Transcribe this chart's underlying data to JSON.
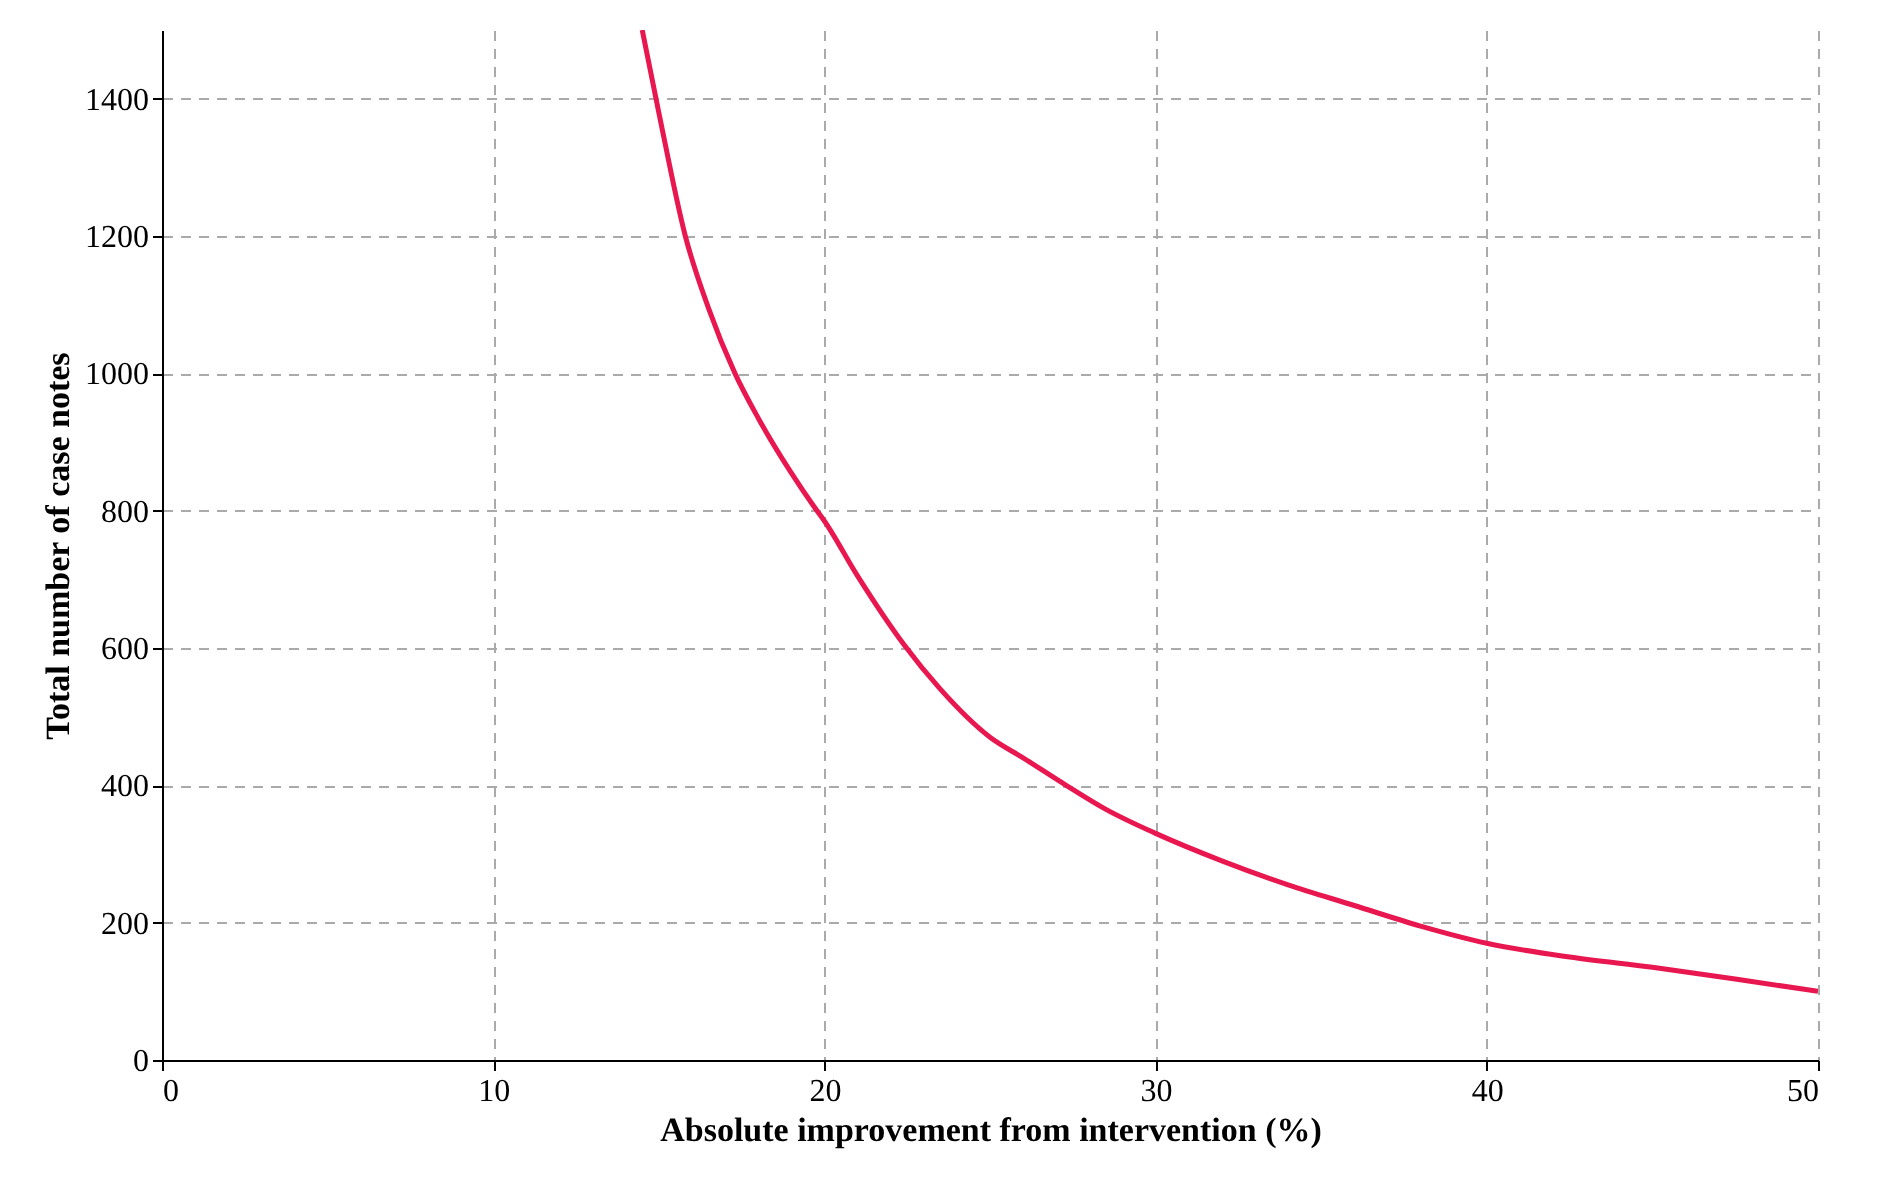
{
  "chart_data": {
    "type": "line",
    "xlabel": "Absolute improvement from intervention (%)",
    "ylabel": "Total number of case notes",
    "x": [
      14.5,
      15,
      15.8,
      16.5,
      17.3,
      18,
      19,
      19.7,
      20,
      21,
      22.4,
      23.5,
      25,
      26,
      27.3,
      28.5,
      30,
      32,
      34,
      36,
      38,
      40,
      42.5,
      45,
      47.5,
      50
    ],
    "series": [
      {
        "color": "#e8174f",
        "values": [
          1500,
          1380,
          1200,
          1095,
          1000,
          935,
          855,
          805,
          785,
          705,
          605,
          540,
          470,
          440,
          400,
          365,
          330,
          290,
          255,
          225,
          195,
          170,
          150,
          135,
          118,
          100
        ]
      }
    ],
    "xlim": [
      0,
      50
    ],
    "ylim": [
      0,
      1500
    ],
    "xticks": [
      0,
      10,
      20,
      30,
      40,
      50
    ],
    "yticks": [
      0,
      200,
      400,
      600,
      800,
      1000,
      1200,
      1400
    ],
    "grid": true,
    "line_style": "solid",
    "marker": "none"
  }
}
